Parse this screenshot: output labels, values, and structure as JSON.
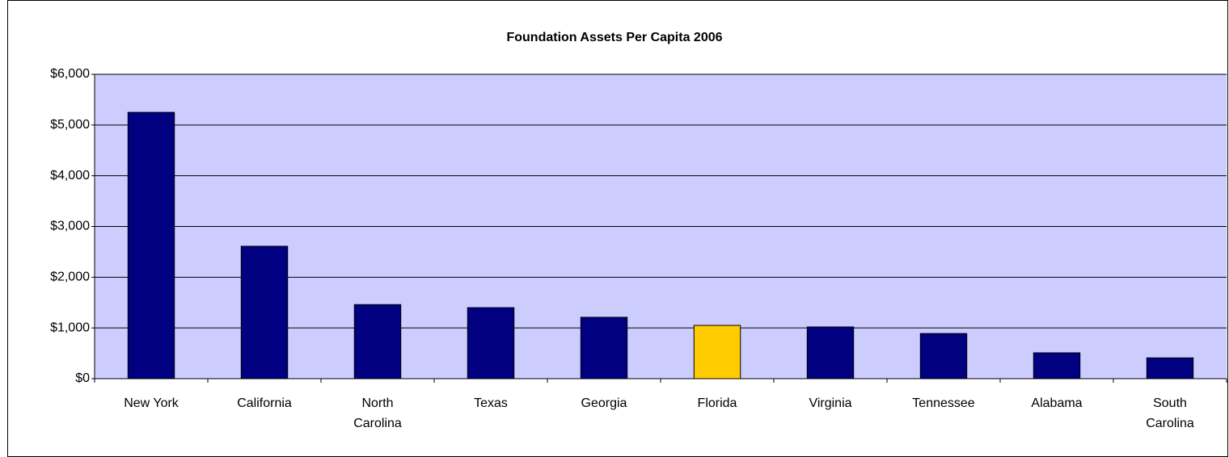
{
  "chart_data": {
    "type": "bar",
    "title": "Foundation Assets Per Capita 2006",
    "categories": [
      "New York",
      "California",
      "North Carolina",
      "Texas",
      "Georgia",
      "Florida",
      "Virginia",
      "Tennessee",
      "Alabama",
      "South Carolina"
    ],
    "values": [
      5250,
      2610,
      1460,
      1400,
      1210,
      1050,
      1020,
      890,
      510,
      410
    ],
    "colors": [
      "#000080",
      "#000080",
      "#000080",
      "#000080",
      "#000080",
      "#ffcc00",
      "#000080",
      "#000080",
      "#000080",
      "#000080"
    ],
    "ylim": [
      0,
      6000
    ],
    "yticks": [
      {
        "value": 0,
        "label": "$0"
      },
      {
        "value": 1000,
        "label": "$1,000"
      },
      {
        "value": 2000,
        "label": "$2,000"
      },
      {
        "value": 3000,
        "label": "$3,000"
      },
      {
        "value": 4000,
        "label": "$4,000"
      },
      {
        "value": 5000,
        "label": "$5,000"
      },
      {
        "value": 6000,
        "label": "$6,000"
      }
    ],
    "grid": true
  }
}
